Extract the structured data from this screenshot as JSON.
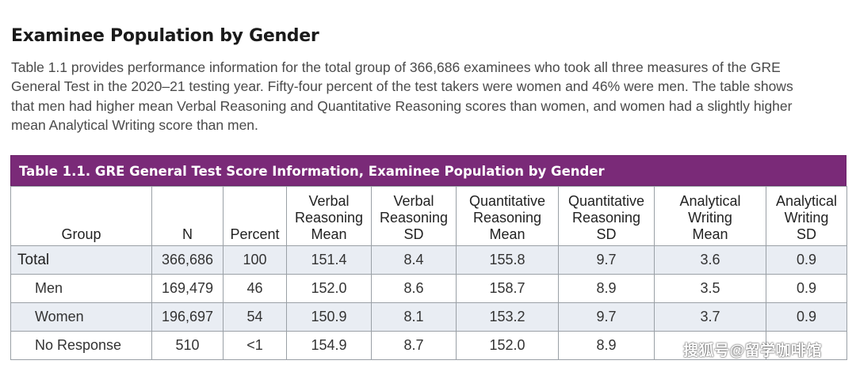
{
  "heading": "Examinee Population by Gender",
  "intro_lines": [
    "Table 1.1 provides performance information for the total group of 366,686 examinees who took all three measures of the GRE",
    "General Test in the 2020–21 testing year. Fifty-four percent of the test takers were women and 46% were men. The table shows",
    "that men had higher mean Verbal Reasoning and Quantitative Reasoning scores than women, and women had a slightly higher",
    "mean Analytical Writing score than men."
  ],
  "table": {
    "caption": "Table 1.1. GRE General Test Score Information, Examinee Population by Gender",
    "header_color": "#7a2a78",
    "stripe_color": "#e9edf3",
    "columns": [
      [
        "Group"
      ],
      [
        "N"
      ],
      [
        "Percent"
      ],
      [
        "Verbal",
        "Reasoning",
        "Mean"
      ],
      [
        "Verbal",
        "Reasoning",
        "SD"
      ],
      [
        "Quantitative",
        "Reasoning",
        "Mean"
      ],
      [
        "Quantitative",
        "Reasoning",
        "SD"
      ],
      [
        "Analytical",
        "Writing",
        "Mean"
      ],
      [
        "Analytical",
        "Writing",
        "SD"
      ]
    ],
    "rows": [
      {
        "group": "Total",
        "n": "366,686",
        "percent": "100",
        "vr_mean": "151.4",
        "vr_sd": "8.4",
        "qr_mean": "155.8",
        "qr_sd": "9.7",
        "aw_mean": "3.6",
        "aw_sd": "0.9"
      },
      {
        "group": "Men",
        "n": "169,479",
        "percent": "46",
        "vr_mean": "152.0",
        "vr_sd": "8.6",
        "qr_mean": "158.7",
        "qr_sd": "8.9",
        "aw_mean": "3.5",
        "aw_sd": "0.9"
      },
      {
        "group": "Women",
        "n": "196,697",
        "percent": "54",
        "vr_mean": "150.9",
        "vr_sd": "8.1",
        "qr_mean": "153.2",
        "qr_sd": "9.7",
        "aw_mean": "3.7",
        "aw_sd": "0.9"
      },
      {
        "group": "No Response",
        "n": "510",
        "percent": "<1",
        "vr_mean": "154.9",
        "vr_sd": "8.7",
        "qr_mean": "152.0",
        "qr_sd": "8.9",
        "aw_mean": "",
        "aw_sd": ""
      }
    ]
  },
  "watermark": "搜狐号@留学咖啡馆"
}
